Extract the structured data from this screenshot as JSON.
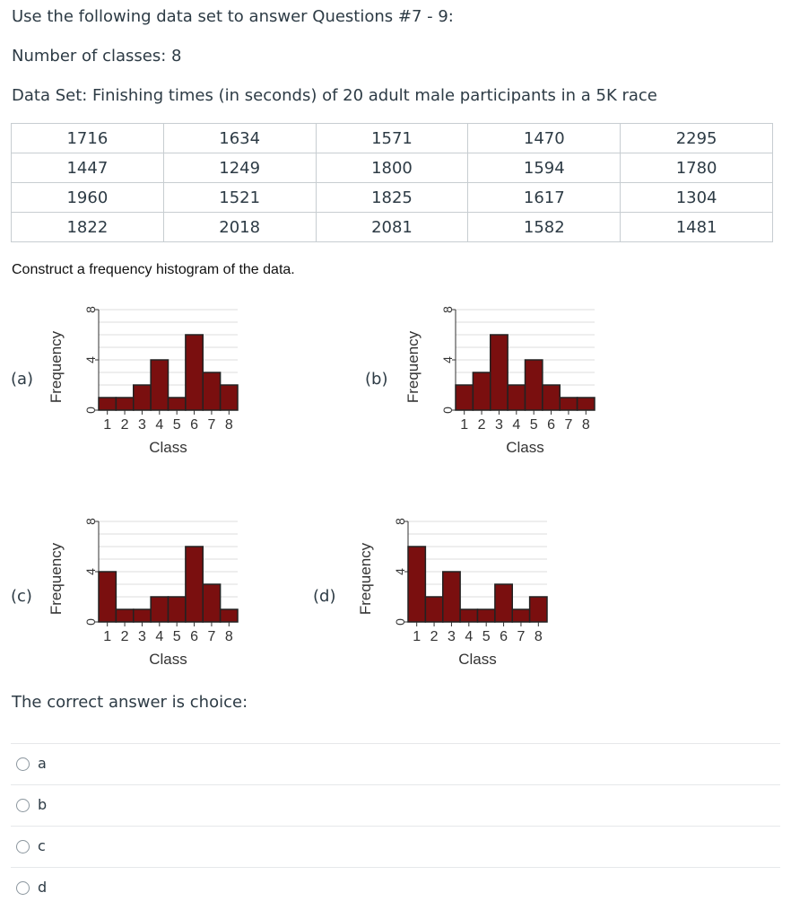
{
  "intro": "Use the following data set to answer Questions #7 - 9:",
  "classes_line": "Number of classes: 8",
  "dataset_line": "Data Set: Finishing times (in seconds) of 20 adult male participants in a 5K race",
  "table": [
    [
      "1716",
      "1634",
      "1571",
      "1470",
      "2295"
    ],
    [
      "1447",
      "1249",
      "1800",
      "1594",
      "1780"
    ],
    [
      "1960",
      "1521",
      "1825",
      "1617",
      "1304"
    ],
    [
      "1822",
      "2018",
      "2081",
      "1582",
      "1481"
    ]
  ],
  "instruction": "Construct a frequency histogram of the data.",
  "chart_data": [
    {
      "type": "bar",
      "label": "(a)",
      "categories": [
        "1",
        "2",
        "3",
        "4",
        "5",
        "6",
        "7",
        "8"
      ],
      "values": [
        1,
        1,
        2,
        4,
        1,
        6,
        3,
        2
      ],
      "ylim": [
        0,
        8
      ],
      "yticks": [
        "0",
        "4",
        "8"
      ],
      "xlabel": "Class",
      "ylabel": "Frequency"
    },
    {
      "type": "bar",
      "label": "(b)",
      "categories": [
        "1",
        "2",
        "3",
        "4",
        "5",
        "6",
        "7",
        "8"
      ],
      "values": [
        2,
        3,
        6,
        2,
        4,
        2,
        1,
        1
      ],
      "ylim": [
        0,
        8
      ],
      "yticks": [
        "0",
        "4",
        "8"
      ],
      "xlabel": "Class",
      "ylabel": "Frequency"
    },
    {
      "type": "bar",
      "label": "(c)",
      "categories": [
        "1",
        "2",
        "3",
        "4",
        "5",
        "6",
        "7",
        "8"
      ],
      "values": [
        4,
        1,
        1,
        2,
        2,
        6,
        3,
        1
      ],
      "ylim": [
        0,
        8
      ],
      "yticks": [
        "0",
        "4",
        "8"
      ],
      "xlabel": "Class",
      "ylabel": "Frequency"
    },
    {
      "type": "bar",
      "label": "(d)",
      "categories": [
        "1",
        "2",
        "3",
        "4",
        "5",
        "6",
        "7",
        "8"
      ],
      "values": [
        6,
        2,
        4,
        1,
        1,
        3,
        1,
        2
      ],
      "ylim": [
        0,
        8
      ],
      "yticks": [
        "0",
        "4",
        "8"
      ],
      "xlabel": "Class",
      "ylabel": "Frequency"
    }
  ],
  "colors": {
    "bar": "#7a0f0f",
    "bar_stroke": "#222222",
    "grid": "#dddddd"
  },
  "answer_prompt": "The correct answer is choice:",
  "options": [
    "a",
    "b",
    "c",
    "d"
  ]
}
